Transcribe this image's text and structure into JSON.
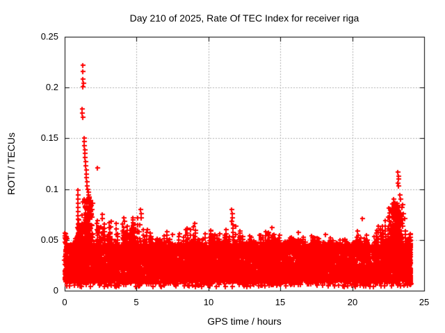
{
  "chart_data": {
    "type": "scatter",
    "title": "Day 210 of 2025, Rate Of TEC Index for receiver riga",
    "xlabel": "GPS time / hours",
    "ylabel": "ROTI / TECUs",
    "xlim": [
      0,
      25
    ],
    "ylim": [
      0,
      0.25
    ],
    "xticks": [
      0,
      5,
      10,
      15,
      20,
      25
    ],
    "yticks": [
      0,
      0.05,
      0.1,
      0.15,
      0.2,
      0.25
    ],
    "xtick_labels": [
      "0",
      "5",
      "10",
      "15",
      "20",
      "25"
    ],
    "ytick_labels": [
      "0",
      "0.05",
      "0.1",
      "0.15",
      "0.2",
      "0.25"
    ],
    "grid": "dotted gray lines at interior major ticks, ticks mirrored on all borders",
    "legend": "none",
    "marker": "plus",
    "point_color": "#ff0000",
    "grid_color": "#b0b0b0",
    "border_color": "#000000",
    "background": "#ffffff",
    "data_coverage_hours": [
      0,
      24.05
    ],
    "notable_points": [
      [
        1.26,
        0.222
      ],
      [
        1.26,
        0.216
      ],
      [
        1.28,
        0.208
      ],
      [
        1.29,
        0.204
      ],
      [
        1.28,
        0.201
      ],
      [
        1.22,
        0.179
      ],
      [
        1.23,
        0.175
      ],
      [
        1.24,
        0.171
      ],
      [
        1.34,
        0.15
      ],
      [
        1.35,
        0.147
      ],
      [
        1.34,
        0.143
      ],
      [
        1.38,
        0.139
      ],
      [
        1.4,
        0.135
      ],
      [
        1.42,
        0.131
      ],
      [
        1.44,
        0.127
      ],
      [
        1.46,
        0.123
      ],
      [
        1.48,
        0.119
      ],
      [
        1.5,
        0.115
      ],
      [
        1.52,
        0.111
      ],
      [
        1.54,
        0.107
      ],
      [
        1.56,
        0.103
      ],
      [
        1.6,
        0.1
      ],
      [
        1.63,
        0.097
      ],
      [
        1.66,
        0.094
      ],
      [
        1.7,
        0.091
      ],
      [
        1.8,
        0.088
      ],
      [
        1.85,
        0.084
      ],
      [
        1.9,
        0.08
      ],
      [
        0.9,
        0.099
      ],
      [
        0.91,
        0.094
      ],
      [
        0.92,
        0.09
      ],
      [
        0.93,
        0.086
      ],
      [
        0.9,
        0.082
      ],
      [
        0.94,
        0.078
      ],
      [
        0.92,
        0.074
      ],
      [
        0.95,
        0.07
      ],
      [
        0.96,
        0.066
      ],
      [
        0.89,
        0.062
      ],
      [
        2.27,
        0.121
      ],
      [
        2.6,
        0.075
      ],
      [
        2.63,
        0.071
      ],
      [
        3.25,
        0.068
      ],
      [
        4.1,
        0.072
      ],
      [
        4.15,
        0.068
      ],
      [
        5.28,
        0.08
      ],
      [
        5.3,
        0.076
      ],
      [
        5.33,
        0.072
      ],
      [
        9.05,
        0.066
      ],
      [
        11.62,
        0.08
      ],
      [
        11.64,
        0.076
      ],
      [
        11.66,
        0.072
      ],
      [
        11.6,
        0.068
      ],
      [
        14.4,
        0.062
      ],
      [
        20.7,
        0.071
      ],
      [
        22.85,
        0.09
      ],
      [
        22.95,
        0.087
      ],
      [
        23.18,
        0.117
      ],
      [
        23.2,
        0.113
      ],
      [
        23.21,
        0.11
      ],
      [
        23.17,
        0.106
      ],
      [
        23.23,
        0.103
      ],
      [
        23.3,
        0.094
      ],
      [
        23.35,
        0.09
      ],
      [
        23.45,
        0.082
      ],
      [
        23.55,
        0.076
      ],
      [
        23.65,
        0.071
      ]
    ],
    "scatter_model": {
      "description": "dense noise band of ROTI values covering 0-24.05 h; upper spike envelope sampled every 0.5 h",
      "band": {
        "x_min": 0,
        "x_max": 24.05,
        "y_min": 0.004,
        "y_core_max": 0.045,
        "core_count": 6500,
        "spike_runs": 520
      },
      "envelope_step_hours": 0.5,
      "envelope_max": [
        0.056,
        0.052,
        0.075,
        0.09,
        0.078,
        0.075,
        0.07,
        0.07,
        0.07,
        0.066,
        0.08,
        0.064,
        0.058,
        0.062,
        0.058,
        0.062,
        0.058,
        0.062,
        0.066,
        0.058,
        0.062,
        0.058,
        0.06,
        0.08,
        0.064,
        0.058,
        0.055,
        0.058,
        0.06,
        0.056,
        0.06,
        0.056,
        0.06,
        0.056,
        0.053,
        0.058,
        0.056,
        0.053,
        0.056,
        0.053,
        0.056,
        0.06,
        0.056,
        0.06,
        0.068,
        0.085,
        0.092,
        0.075,
        0.055
      ],
      "clusters": [
        {
          "x": 0.07,
          "spread": 0.1,
          "y_min": 0.012,
          "y_max": 0.057,
          "count": 50
        },
        {
          "x": 1.0,
          "spread": 0.14,
          "y_min": 0.045,
          "y_max": 0.066,
          "count": 45
        },
        {
          "x": 1.55,
          "spread": 0.4,
          "y_min": 0.044,
          "y_max": 0.092,
          "count": 170
        },
        {
          "x": 23.0,
          "spread": 0.55,
          "y_min": 0.044,
          "y_max": 0.086,
          "count": 200
        },
        {
          "x": 24.0,
          "spread": 0.07,
          "y_min": 0.006,
          "y_max": 0.056,
          "count": 70
        }
      ]
    }
  }
}
